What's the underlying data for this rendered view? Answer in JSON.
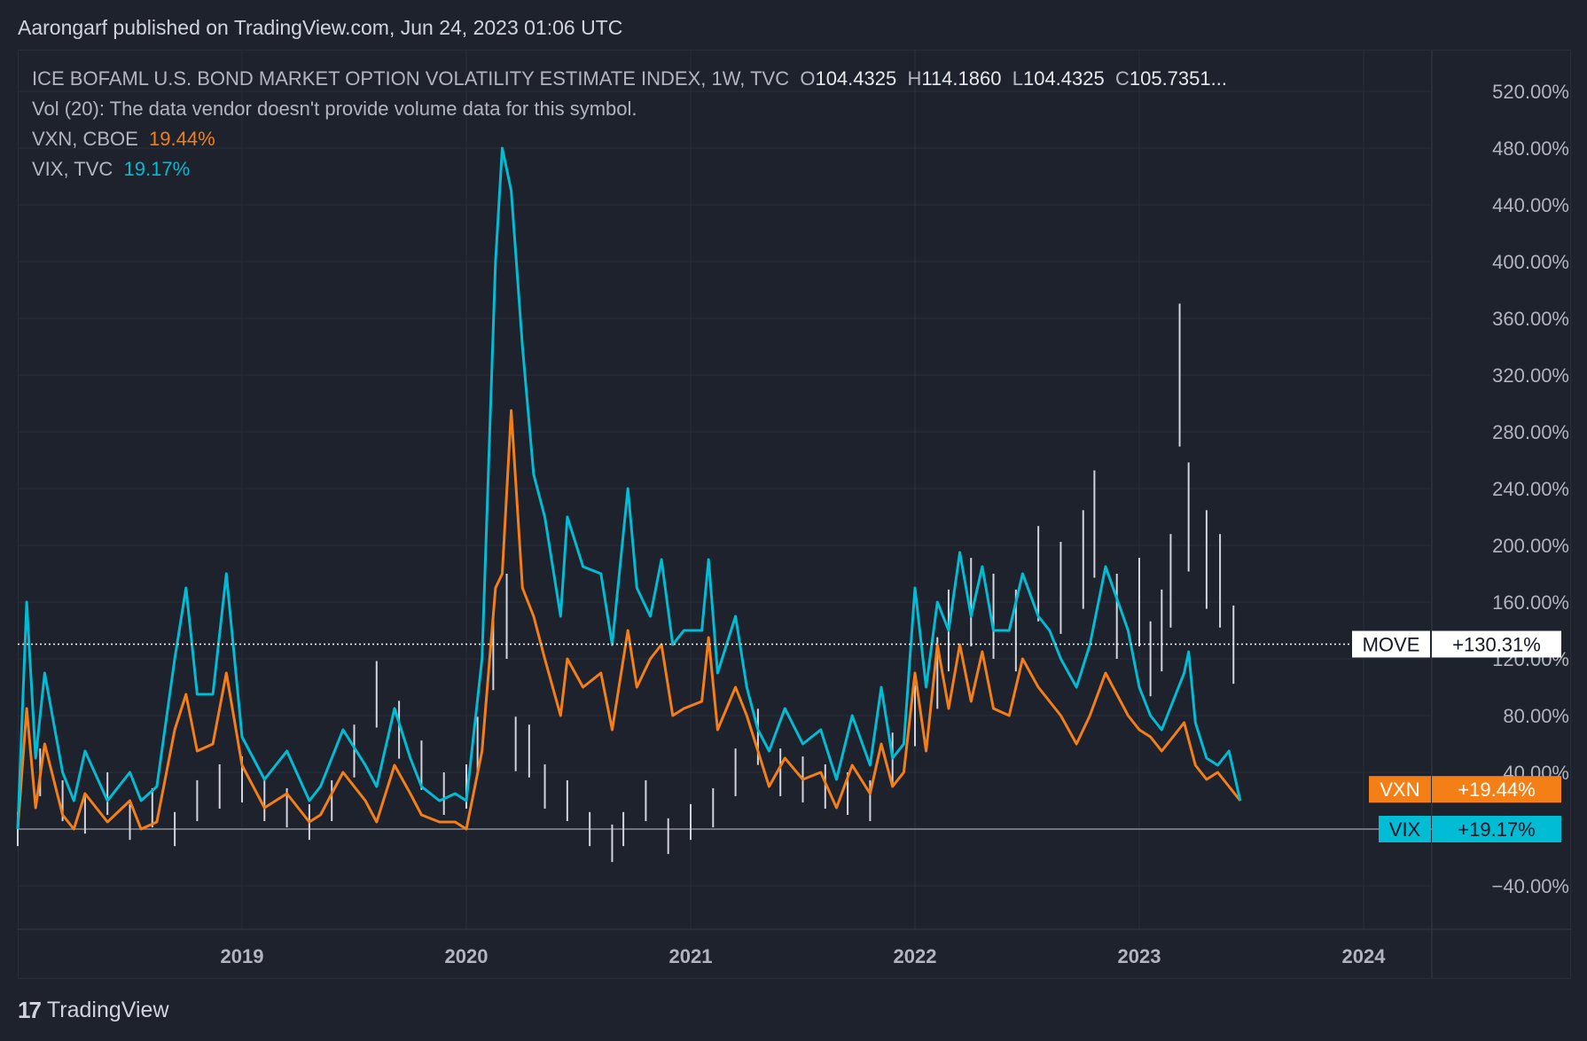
{
  "header": {
    "published": "Aarongarf published on TradingView.com, Jun 24, 2023 01:06 UTC"
  },
  "legend": {
    "main": {
      "title": "ICE BOFAML U.S. BOND MARKET OPTION VOLATILITY ESTIMATE INDEX, 1W, TVC",
      "o_label": "O",
      "o_value": "104.4325",
      "h_label": "H",
      "h_value": "114.1860",
      "l_label": "L",
      "l_value": "104.4325",
      "c_label": "C",
      "c_value": "105.7351..."
    },
    "vol_text": "Vol (20): The data vendor doesn't provide volume data for this symbol.",
    "vxn": {
      "name": "VXN, CBOE",
      "value": "19.44%"
    },
    "vix": {
      "name": "VIX, TVC",
      "value": "19.17%"
    }
  },
  "footer": {
    "logo_mark": "17",
    "brand": "TradingView"
  },
  "colors": {
    "background": "#1e222d",
    "grid": "#2a2e39",
    "move": "#d1d4dc",
    "vxn": "#f57f17",
    "vix": "#00bcd4",
    "text": "#b2b5be"
  },
  "chart_data": {
    "type": "line",
    "title": "ICE BOFAML U.S. BOND MARKET OPTION VOLATILITY ESTIMATE INDEX, 1W, TVC",
    "x_ticks": [
      "2019",
      "2020",
      "2021",
      "2022",
      "2023",
      "2024"
    ],
    "y_ticks": [
      "520.00%",
      "480.00%",
      "440.00%",
      "400.00%",
      "360.00%",
      "320.00%",
      "280.00%",
      "240.00%",
      "200.00%",
      "160.00%",
      "120.00%",
      "80.00%",
      "40.00%",
      "−40.00%"
    ],
    "y_tick_values": [
      520,
      480,
      440,
      400,
      360,
      320,
      280,
      240,
      200,
      160,
      120,
      80,
      40,
      -40
    ],
    "ylim": [
      -70,
      545
    ],
    "y_unit": "percent change",
    "grid": true,
    "series": [
      {
        "name": "MOVE",
        "style": "bars",
        "badge_label": "MOVE",
        "badge_value": "+130.31%",
        "points": [
          [
            2018.0,
            0
          ],
          [
            2018.1,
            40
          ],
          [
            2018.2,
            20
          ],
          [
            2018.3,
            10
          ],
          [
            2018.4,
            25
          ],
          [
            2018.5,
            5
          ],
          [
            2018.6,
            15
          ],
          [
            2018.7,
            0
          ],
          [
            2018.8,
            20
          ],
          [
            2018.9,
            30
          ],
          [
            2019.0,
            35
          ],
          [
            2019.1,
            20
          ],
          [
            2019.2,
            15
          ],
          [
            2019.3,
            5
          ],
          [
            2019.4,
            20
          ],
          [
            2019.5,
            55
          ],
          [
            2019.6,
            95
          ],
          [
            2019.7,
            70
          ],
          [
            2019.8,
            45
          ],
          [
            2019.9,
            25
          ],
          [
            2020.0,
            30
          ],
          [
            2020.05,
            60
          ],
          [
            2020.12,
            125
          ],
          [
            2020.18,
            150
          ],
          [
            2020.22,
            60
          ],
          [
            2020.28,
            55
          ],
          [
            2020.35,
            30
          ],
          [
            2020.45,
            20
          ],
          [
            2020.55,
            0
          ],
          [
            2020.65,
            -10
          ],
          [
            2020.7,
            0
          ],
          [
            2020.8,
            20
          ],
          [
            2020.9,
            -5
          ],
          [
            2021.0,
            5
          ],
          [
            2021.1,
            15
          ],
          [
            2021.2,
            40
          ],
          [
            2021.3,
            65
          ],
          [
            2021.4,
            40
          ],
          [
            2021.5,
            35
          ],
          [
            2021.6,
            30
          ],
          [
            2021.7,
            25
          ],
          [
            2021.8,
            20
          ],
          [
            2021.9,
            50
          ],
          [
            2022.0,
            80
          ],
          [
            2022.1,
            110
          ],
          [
            2022.15,
            140
          ],
          [
            2022.25,
            160
          ],
          [
            2022.35,
            150
          ],
          [
            2022.45,
            140
          ],
          [
            2022.55,
            180
          ],
          [
            2022.65,
            170
          ],
          [
            2022.75,
            190
          ],
          [
            2022.8,
            215
          ],
          [
            2022.9,
            150
          ],
          [
            2023.0,
            160
          ],
          [
            2023.05,
            120
          ],
          [
            2023.1,
            140
          ],
          [
            2023.14,
            175
          ],
          [
            2023.18,
            320
          ],
          [
            2023.22,
            220
          ],
          [
            2023.3,
            190
          ],
          [
            2023.36,
            175
          ],
          [
            2023.42,
            130
          ]
        ]
      },
      {
        "name": "VXN, CBOE",
        "badge_label": "VXN",
        "badge_value": "+19.44%",
        "points": [
          [
            2018.0,
            0
          ],
          [
            2018.04,
            85
          ],
          [
            2018.08,
            15
          ],
          [
            2018.12,
            60
          ],
          [
            2018.2,
            10
          ],
          [
            2018.25,
            0
          ],
          [
            2018.3,
            25
          ],
          [
            2018.4,
            5
          ],
          [
            2018.5,
            20
          ],
          [
            2018.55,
            0
          ],
          [
            2018.62,
            5
          ],
          [
            2018.7,
            70
          ],
          [
            2018.75,
            95
          ],
          [
            2018.8,
            55
          ],
          [
            2018.87,
            60
          ],
          [
            2018.93,
            110
          ],
          [
            2019.0,
            45
          ],
          [
            2019.1,
            15
          ],
          [
            2019.2,
            25
          ],
          [
            2019.3,
            5
          ],
          [
            2019.35,
            10
          ],
          [
            2019.45,
            40
          ],
          [
            2019.55,
            20
          ],
          [
            2019.6,
            5
          ],
          [
            2019.68,
            45
          ],
          [
            2019.75,
            25
          ],
          [
            2019.8,
            10
          ],
          [
            2019.88,
            5
          ],
          [
            2019.95,
            5
          ],
          [
            2020.0,
            0
          ],
          [
            2020.07,
            55
          ],
          [
            2020.13,
            170
          ],
          [
            2020.16,
            180
          ],
          [
            2020.2,
            295
          ],
          [
            2020.25,
            170
          ],
          [
            2020.3,
            150
          ],
          [
            2020.35,
            120
          ],
          [
            2020.42,
            80
          ],
          [
            2020.45,
            120
          ],
          [
            2020.52,
            100
          ],
          [
            2020.6,
            110
          ],
          [
            2020.65,
            70
          ],
          [
            2020.72,
            140
          ],
          [
            2020.76,
            100
          ],
          [
            2020.82,
            120
          ],
          [
            2020.87,
            130
          ],
          [
            2020.92,
            80
          ],
          [
            2020.97,
            85
          ],
          [
            2021.05,
            90
          ],
          [
            2021.08,
            135
          ],
          [
            2021.12,
            70
          ],
          [
            2021.2,
            100
          ],
          [
            2021.25,
            80
          ],
          [
            2021.3,
            55
          ],
          [
            2021.35,
            30
          ],
          [
            2021.42,
            50
          ],
          [
            2021.5,
            35
          ],
          [
            2021.58,
            40
          ],
          [
            2021.65,
            15
          ],
          [
            2021.72,
            45
          ],
          [
            2021.8,
            25
          ],
          [
            2021.85,
            60
          ],
          [
            2021.9,
            30
          ],
          [
            2021.95,
            40
          ],
          [
            2022.0,
            110
          ],
          [
            2022.05,
            55
          ],
          [
            2022.1,
            130
          ],
          [
            2022.15,
            85
          ],
          [
            2022.2,
            130
          ],
          [
            2022.25,
            90
          ],
          [
            2022.3,
            125
          ],
          [
            2022.35,
            85
          ],
          [
            2022.42,
            80
          ],
          [
            2022.48,
            120
          ],
          [
            2022.55,
            100
          ],
          [
            2022.6,
            90
          ],
          [
            2022.65,
            80
          ],
          [
            2022.72,
            60
          ],
          [
            2022.78,
            80
          ],
          [
            2022.85,
            110
          ],
          [
            2022.95,
            80
          ],
          [
            2023.0,
            70
          ],
          [
            2023.05,
            65
          ],
          [
            2023.1,
            55
          ],
          [
            2023.15,
            65
          ],
          [
            2023.2,
            75
          ],
          [
            2023.25,
            45
          ],
          [
            2023.3,
            35
          ],
          [
            2023.35,
            40
          ],
          [
            2023.4,
            30
          ],
          [
            2023.45,
            20
          ]
        ]
      },
      {
        "name": "VIX, TVC",
        "badge_label": "VIX",
        "badge_value": "+19.17%",
        "points": [
          [
            2018.0,
            0
          ],
          [
            2018.04,
            160
          ],
          [
            2018.08,
            50
          ],
          [
            2018.12,
            110
          ],
          [
            2018.2,
            40
          ],
          [
            2018.25,
            20
          ],
          [
            2018.3,
            55
          ],
          [
            2018.4,
            20
          ],
          [
            2018.5,
            40
          ],
          [
            2018.55,
            20
          ],
          [
            2018.62,
            30
          ],
          [
            2018.7,
            120
          ],
          [
            2018.75,
            170
          ],
          [
            2018.8,
            95
          ],
          [
            2018.87,
            95
          ],
          [
            2018.93,
            180
          ],
          [
            2019.0,
            65
          ],
          [
            2019.1,
            35
          ],
          [
            2019.2,
            55
          ],
          [
            2019.3,
            20
          ],
          [
            2019.35,
            30
          ],
          [
            2019.45,
            70
          ],
          [
            2019.55,
            45
          ],
          [
            2019.6,
            30
          ],
          [
            2019.68,
            85
          ],
          [
            2019.75,
            50
          ],
          [
            2019.8,
            30
          ],
          [
            2019.88,
            20
          ],
          [
            2019.95,
            25
          ],
          [
            2020.0,
            20
          ],
          [
            2020.07,
            120
          ],
          [
            2020.13,
            400
          ],
          [
            2020.16,
            480
          ],
          [
            2020.2,
            450
          ],
          [
            2020.25,
            340
          ],
          [
            2020.3,
            250
          ],
          [
            2020.35,
            220
          ],
          [
            2020.42,
            150
          ],
          [
            2020.45,
            220
          ],
          [
            2020.52,
            185
          ],
          [
            2020.6,
            180
          ],
          [
            2020.65,
            130
          ],
          [
            2020.72,
            240
          ],
          [
            2020.76,
            170
          ],
          [
            2020.82,
            150
          ],
          [
            2020.87,
            190
          ],
          [
            2020.92,
            130
          ],
          [
            2020.97,
            140
          ],
          [
            2021.05,
            140
          ],
          [
            2021.08,
            190
          ],
          [
            2021.12,
            110
          ],
          [
            2021.2,
            150
          ],
          [
            2021.25,
            100
          ],
          [
            2021.3,
            70
          ],
          [
            2021.35,
            55
          ],
          [
            2021.42,
            85
          ],
          [
            2021.5,
            60
          ],
          [
            2021.58,
            70
          ],
          [
            2021.65,
            35
          ],
          [
            2021.72,
            80
          ],
          [
            2021.8,
            45
          ],
          [
            2021.85,
            100
          ],
          [
            2021.9,
            50
          ],
          [
            2021.95,
            60
          ],
          [
            2022.0,
            170
          ],
          [
            2022.05,
            100
          ],
          [
            2022.1,
            160
          ],
          [
            2022.15,
            140
          ],
          [
            2022.2,
            195
          ],
          [
            2022.25,
            150
          ],
          [
            2022.3,
            185
          ],
          [
            2022.35,
            140
          ],
          [
            2022.42,
            140
          ],
          [
            2022.48,
            180
          ],
          [
            2022.55,
            150
          ],
          [
            2022.6,
            140
          ],
          [
            2022.65,
            120
          ],
          [
            2022.72,
            100
          ],
          [
            2022.78,
            130
          ],
          [
            2022.85,
            185
          ],
          [
            2022.95,
            140
          ],
          [
            2023.0,
            100
          ],
          [
            2023.05,
            80
          ],
          [
            2023.1,
            70
          ],
          [
            2023.15,
            90
          ],
          [
            2023.2,
            110
          ],
          [
            2023.22,
            125
          ],
          [
            2023.25,
            75
          ],
          [
            2023.3,
            50
          ],
          [
            2023.35,
            45
          ],
          [
            2023.4,
            55
          ],
          [
            2023.45,
            20
          ]
        ]
      }
    ]
  }
}
